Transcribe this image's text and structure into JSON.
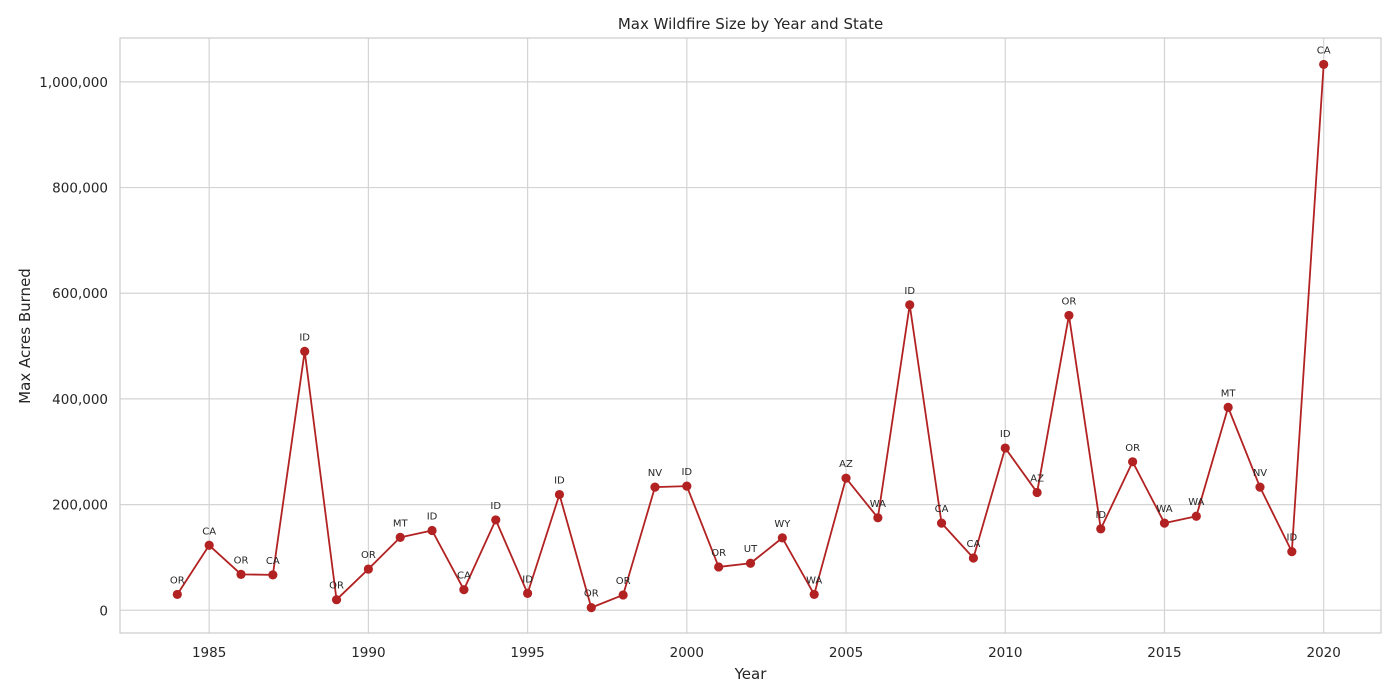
{
  "chart_data": {
    "type": "line",
    "title": "Max Wildfire Size by Year and State",
    "xlabel": "Year",
    "ylabel": "Max Acres Burned",
    "xlim": [
      1982.2,
      2021.8
    ],
    "ylim": [
      -43000,
      1083000
    ],
    "x_ticks": [
      1985,
      1990,
      1995,
      2000,
      2005,
      2010,
      2015,
      2020
    ],
    "x_tick_labels": [
      "1985",
      "1990",
      "1995",
      "2000",
      "2005",
      "2010",
      "2015",
      "2020"
    ],
    "y_ticks": [
      0,
      200000,
      400000,
      600000,
      800000,
      1000000
    ],
    "y_tick_labels": [
      "0",
      "200,000",
      "400,000",
      "600,000",
      "800,000",
      "1,000,000"
    ],
    "grid": true,
    "series": [
      {
        "color": "#b22222",
        "marker": "circle",
        "points": [
          {
            "x": 1984,
            "y": 30000,
            "label": "OR"
          },
          {
            "x": 1985,
            "y": 123000,
            "label": "CA"
          },
          {
            "x": 1986,
            "y": 68000,
            "label": "OR"
          },
          {
            "x": 1987,
            "y": 67000,
            "label": "CA"
          },
          {
            "x": 1988,
            "y": 490000,
            "label": "ID"
          },
          {
            "x": 1989,
            "y": 20000,
            "label": "OR"
          },
          {
            "x": 1990,
            "y": 78000,
            "label": "OR"
          },
          {
            "x": 1991,
            "y": 138000,
            "label": "MT"
          },
          {
            "x": 1992,
            "y": 151000,
            "label": "ID"
          },
          {
            "x": 1993,
            "y": 39000,
            "label": "CA"
          },
          {
            "x": 1994,
            "y": 171000,
            "label": "ID"
          },
          {
            "x": 1995,
            "y": 32000,
            "label": "ID"
          },
          {
            "x": 1996,
            "y": 219000,
            "label": "ID"
          },
          {
            "x": 1997,
            "y": 5000,
            "label": "OR"
          },
          {
            "x": 1998,
            "y": 29000,
            "label": "OR"
          },
          {
            "x": 1999,
            "y": 233000,
            "label": "NV"
          },
          {
            "x": 2000,
            "y": 235000,
            "label": "ID"
          },
          {
            "x": 2001,
            "y": 82000,
            "label": "OR"
          },
          {
            "x": 2002,
            "y": 89000,
            "label": "UT"
          },
          {
            "x": 2003,
            "y": 137000,
            "label": "WY"
          },
          {
            "x": 2004,
            "y": 30000,
            "label": "WA"
          },
          {
            "x": 2005,
            "y": 250000,
            "label": "AZ"
          },
          {
            "x": 2006,
            "y": 175000,
            "label": "WA"
          },
          {
            "x": 2007,
            "y": 578000,
            "label": "ID"
          },
          {
            "x": 2008,
            "y": 165000,
            "label": "CA"
          },
          {
            "x": 2009,
            "y": 99000,
            "label": "CA"
          },
          {
            "x": 2010,
            "y": 307000,
            "label": "ID"
          },
          {
            "x": 2011,
            "y": 223000,
            "label": "AZ"
          },
          {
            "x": 2012,
            "y": 558000,
            "label": "OR"
          },
          {
            "x": 2013,
            "y": 154000,
            "label": "ID"
          },
          {
            "x": 2014,
            "y": 281000,
            "label": "OR"
          },
          {
            "x": 2015,
            "y": 165000,
            "label": "WA"
          },
          {
            "x": 2016,
            "y": 178000,
            "label": "WA"
          },
          {
            "x": 2017,
            "y": 384000,
            "label": "MT"
          },
          {
            "x": 2018,
            "y": 233000,
            "label": "NV"
          },
          {
            "x": 2019,
            "y": 111000,
            "label": "ID"
          },
          {
            "x": 2020,
            "y": 1033000,
            "label": "CA"
          }
        ]
      }
    ]
  }
}
